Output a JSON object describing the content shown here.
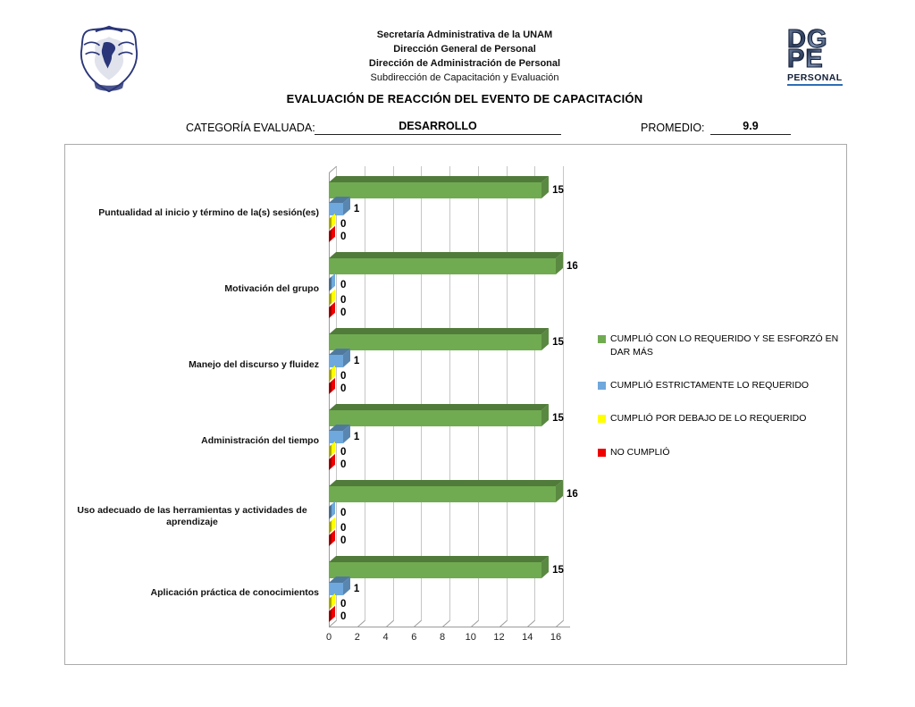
{
  "header": {
    "org_lines": [
      "Secretaría Administrativa de la UNAM",
      "Dirección General de Personal",
      "Dirección de Administración de Personal",
      "Subdirección de Capacitación y Evaluación"
    ],
    "title": "EVALUACIÓN DE REACCIÓN DEL EVENTO DE CAPACITACIÓN",
    "dgpe": {
      "top": "DG",
      "bottom": "PE",
      "caption": "PERSONAL"
    }
  },
  "meta": {
    "category_label": "CATEGORÍA EVALUADA:",
    "category_value": "DESARROLLO",
    "promedio_label": "PROMEDIO:",
    "promedio_value": "9.9"
  },
  "chart_data": {
    "type": "bar",
    "orientation": "horizontal",
    "style": "3d",
    "title": "",
    "xlabel": "",
    "ylabel": "",
    "xlim": [
      0,
      16
    ],
    "x_ticks": [
      0,
      2,
      4,
      6,
      8,
      10,
      12,
      14,
      16
    ],
    "grid": true,
    "legend_position": "right",
    "categories": [
      "Puntualidad al inicio y término de la(s) sesión(es)",
      "Motivación del grupo",
      "Manejo del discurso y fluidez",
      "Administración del tiempo",
      "Uso adecuado de las herramientas y actividades de aprendizaje",
      "Aplicación práctica de conocimientos"
    ],
    "series": [
      {
        "name": "CUMPLIÓ CON LO REQUERIDO Y SE ESFORZÓ EN DAR MÁS",
        "color": "#70AB51",
        "values": [
          15,
          16,
          15,
          15,
          16,
          15
        ]
      },
      {
        "name": "CUMPLIÓ ESTRICTAMENTE LO REQUERIDO",
        "color": "#6FA8DC",
        "values": [
          1,
          0,
          1,
          1,
          0,
          1
        ]
      },
      {
        "name": "CUMPLIÓ POR DEBAJO DE LO REQUERIDO",
        "color": "#FFFF00",
        "values": [
          0,
          0,
          0,
          0,
          0,
          0
        ]
      },
      {
        "name": "NO CUMPLIÓ",
        "color": "#EE0000",
        "values": [
          0,
          0,
          0,
          0,
          0,
          0
        ]
      }
    ]
  }
}
